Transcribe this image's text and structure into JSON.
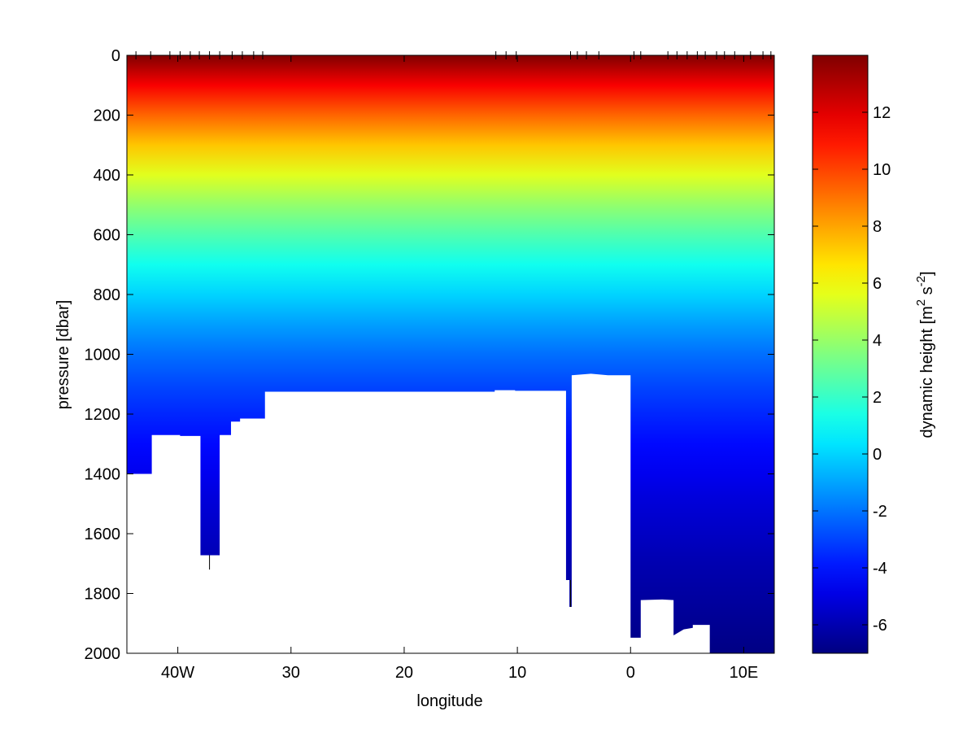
{
  "chart_data": {
    "type": "heatmap",
    "title": "",
    "xlabel": "longitude",
    "ylabel": "pressure [dbar]",
    "xlim": [
      -44.5,
      12.7
    ],
    "ylim": [
      0,
      2000
    ],
    "y_reversed": true,
    "x_ticks": [
      {
        "value": -40,
        "label": "40W"
      },
      {
        "value": -30,
        "label": "30"
      },
      {
        "value": -20,
        "label": "20"
      },
      {
        "value": -10,
        "label": "10"
      },
      {
        "value": 0,
        "label": "0"
      },
      {
        "value": 10,
        "label": "10E"
      }
    ],
    "y_ticks": [
      0,
      200,
      400,
      600,
      800,
      1000,
      1200,
      1400,
      1600,
      1800,
      2000
    ],
    "colorbar": {
      "label_base": "dynamic height [m",
      "label_exp1": "2",
      "label_mid": " s",
      "label_exp2": "-2",
      "label_end": "]",
      "min": -7,
      "max": 14,
      "ticks": [
        12,
        10,
        8,
        6,
        4,
        2,
        0,
        -2,
        -4,
        -6
      ],
      "colormap": "jet"
    },
    "field": {
      "description_values": "dynamic height vs pressure; approximately linear decrease with depth",
      "profile": [
        {
          "pressure": 0,
          "value": 14
        },
        {
          "pressure": 100,
          "value": 11.5
        },
        {
          "pressure": 200,
          "value": 9.3
        },
        {
          "pressure": 300,
          "value": 7.3
        },
        {
          "pressure": 400,
          "value": 5.5
        },
        {
          "pressure": 500,
          "value": 3.9
        },
        {
          "pressure": 600,
          "value": 2.5
        },
        {
          "pressure": 700,
          "value": 1.2
        },
        {
          "pressure": 800,
          "value": 0.0
        },
        {
          "pressure": 900,
          "value": -1.1
        },
        {
          "pressure": 1000,
          "value": -2.1
        },
        {
          "pressure": 1100,
          "value": -2.9
        },
        {
          "pressure": 1200,
          "value": -3.6
        },
        {
          "pressure": 1300,
          "value": -4.2
        },
        {
          "pressure": 1400,
          "value": -4.7
        },
        {
          "pressure": 1500,
          "value": -5.2
        },
        {
          "pressure": 1600,
          "value": -5.6
        },
        {
          "pressure": 1700,
          "value": -6.0
        },
        {
          "pressure": 1800,
          "value": -6.3
        },
        {
          "pressure": 1900,
          "value": -6.6
        },
        {
          "pressure": 2000,
          "value": -6.9
        }
      ]
    },
    "data_bottom": [
      {
        "lon": -44.5,
        "p": 1400
      },
      {
        "lon": -42.3,
        "p": 1400
      },
      {
        "lon": -42.3,
        "p": 1270
      },
      {
        "lon": -39.8,
        "p": 1270
      },
      {
        "lon": -39.8,
        "p": 1273
      },
      {
        "lon": -38.0,
        "p": 1273
      },
      {
        "lon": -38.0,
        "p": 1672
      },
      {
        "lon": -36.3,
        "p": 1672
      },
      {
        "lon": -36.3,
        "p": 1270
      },
      {
        "lon": -35.3,
        "p": 1270
      },
      {
        "lon": -35.3,
        "p": 1225
      },
      {
        "lon": -34.5,
        "p": 1225
      },
      {
        "lon": -34.5,
        "p": 1215
      },
      {
        "lon": -32.3,
        "p": 1215
      },
      {
        "lon": -32.3,
        "p": 1125
      },
      {
        "lon": -12.0,
        "p": 1125
      },
      {
        "lon": -12.0,
        "p": 1120
      },
      {
        "lon": -10.2,
        "p": 1120
      },
      {
        "lon": -10.2,
        "p": 1122
      },
      {
        "lon": -5.7,
        "p": 1122
      },
      {
        "lon": -5.7,
        "p": 1755
      },
      {
        "lon": -5.4,
        "p": 1755
      },
      {
        "lon": -5.4,
        "p": 1845
      },
      {
        "lon": -5.2,
        "p": 1845
      },
      {
        "lon": -5.2,
        "p": 1070
      },
      {
        "lon": -3.5,
        "p": 1065
      },
      {
        "lon": -2.0,
        "p": 1070
      },
      {
        "lon": 0.0,
        "p": 1070
      },
      {
        "lon": 0.0,
        "p": 1948
      },
      {
        "lon": 0.9,
        "p": 1948
      },
      {
        "lon": 0.9,
        "p": 1822
      },
      {
        "lon": 2.8,
        "p": 1820
      },
      {
        "lon": 3.8,
        "p": 1822
      },
      {
        "lon": 3.8,
        "p": 1940
      },
      {
        "lon": 4.7,
        "p": 1920
      },
      {
        "lon": 5.5,
        "p": 1915
      },
      {
        "lon": 5.5,
        "p": 1905
      },
      {
        "lon": 7.0,
        "p": 1905
      },
      {
        "lon": 7.0,
        "p": 2000
      },
      {
        "lon": 12.7,
        "p": 2000
      }
    ],
    "station_marks": [
      -43.7,
      -42.4,
      -40.7,
      -39.8,
      -38.9,
      -38.1,
      -37.2,
      -36.3,
      -35.2,
      -34.3,
      -33.3,
      -32.5,
      -11.9,
      -11.0,
      -10.1,
      -5.3,
      -4.7,
      -3.9,
      -2.8,
      0.3,
      0.9,
      3.3,
      4.1,
      5.0,
      5.9,
      6.6,
      7.6,
      8.3,
      9.2,
      10.6,
      11.7,
      12.4
    ]
  }
}
